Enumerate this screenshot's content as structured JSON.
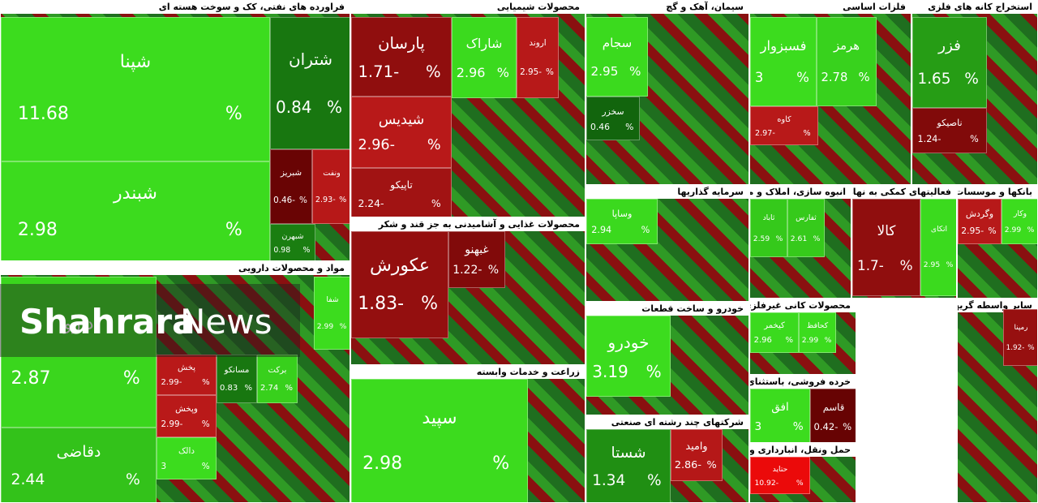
{
  "chart_data": {
    "type": "treemap",
    "percent_sign": "%",
    "watermark": {
      "bold": "Shahrara",
      "light": "News"
    },
    "groups": [
      {
        "title": "فراورده های نفتی، کک و سوخت هسته ای",
        "tiles": [
          {
            "name": "شپنا",
            "value": 11.68
          },
          {
            "name": "شبندر",
            "value": 2.98
          },
          {
            "name": "شتران",
            "value": 0.84
          },
          {
            "name": "شبریز",
            "value": -0.46,
            "value_label": "0.46-"
          },
          {
            "name": "ونفت",
            "value": -2.93,
            "value_label": "2.93-"
          },
          {
            "name": "شبهرن",
            "value": 0.98
          }
        ]
      },
      {
        "title": "مواد و محصولات دارویی",
        "tiles": [
          {
            "name": "دارو",
            "value": 2.87
          },
          {
            "name": "دقاضی",
            "value": 2.44
          },
          {
            "name": "پخش",
            "value": -2.99,
            "value_label": "2.99-"
          },
          {
            "name": "وپخش",
            "value": -2.99,
            "value_label": "2.99-"
          },
          {
            "name": "دالک",
            "value": 3
          },
          {
            "name": "مسانکو",
            "value": 0.83
          },
          {
            "name": "برکت",
            "value": 2.74
          },
          {
            "name": "شفا",
            "value": 2.99
          }
        ]
      },
      {
        "title": "محصولات شیمیایی",
        "tiles": [
          {
            "name": "پارسان",
            "value": -1.71,
            "value_label": "1.71-"
          },
          {
            "name": "شیدیس",
            "value": -2.96,
            "value_label": "2.96-"
          },
          {
            "name": "تاپیکو",
            "value": -2.24,
            "value_label": "2.24-"
          },
          {
            "name": "شاراک",
            "value": 2.96
          },
          {
            "name": "اروند",
            "value": -2.95,
            "value_label": "2.95-"
          }
        ]
      },
      {
        "title": "محصولات غذایی و آشامیدنی به جز قند و شکر",
        "tiles": [
          {
            "name": "عکورش",
            "value": -1.83,
            "value_label": "1.83-"
          },
          {
            "name": "غبهنو",
            "value": -1.22,
            "value_label": "1.22-"
          }
        ]
      },
      {
        "title": "زراعت و خدمات وابسته",
        "tiles": [
          {
            "name": "سپید",
            "value": 2.98
          }
        ]
      },
      {
        "title": "سیمان، آهک و گچ",
        "tiles": [
          {
            "name": "سجام",
            "value": 2.95
          },
          {
            "name": "سخزر",
            "value": 0.46
          }
        ]
      },
      {
        "title": "سرمایه گذاریها",
        "tiles": [
          {
            "name": "وساپا",
            "value": 2.94
          }
        ]
      },
      {
        "title": "خودرو و ساخت قطعات",
        "tiles": [
          {
            "name": "خودرو",
            "value": 3.19
          }
        ]
      },
      {
        "title": "شرکتهای چند رشته ای صنعتی",
        "tiles": [
          {
            "name": "شستا",
            "value": 1.34
          },
          {
            "name": "وامید",
            "value": -2.86,
            "value_label": "2.86-"
          }
        ]
      },
      {
        "title": "فلزات اساسی",
        "tiles": [
          {
            "name": "فسبزوار",
            "value": 3
          },
          {
            "name": "هرمز",
            "value": 2.78
          },
          {
            "name": "کاوه",
            "value": -2.97,
            "value_label": "2.97-"
          }
        ]
      },
      {
        "title": "استخراج کانه های فلزی",
        "tiles": [
          {
            "name": "فزر",
            "value": 1.65
          },
          {
            "name": "ناصیکو",
            "value": -1.24,
            "value_label": "1.24-"
          }
        ]
      },
      {
        "title": "انبوه سازی، املاک و مستغلات",
        "tiles": [
          {
            "name": "ثاباد",
            "value": 2.59
          },
          {
            "name": "ثفارس",
            "value": 2.61
          }
        ]
      },
      {
        "title": "فعالیتهای کمکی به نهادهای مالی واسط",
        "tiles": [
          {
            "name": "کالا",
            "value": -1.7,
            "value_label": "1.7-"
          },
          {
            "name": "اتکای",
            "value": 2.95
          }
        ]
      },
      {
        "title": "بانکها و موسسات اعتباری",
        "tiles": [
          {
            "name": "وگردش",
            "value": -2.95,
            "value_label": "2.95-"
          },
          {
            "name": "وکار",
            "value": 2.99
          }
        ]
      },
      {
        "title": "محصولات کانی غیرفلزی",
        "tiles": [
          {
            "name": "کیخمر",
            "value": 2.96
          },
          {
            "name": "کحافظ",
            "value": 2.99
          }
        ]
      },
      {
        "title": "خرده فروشی، باستثنای وسایل نقلیه موتوری",
        "tiles": [
          {
            "name": "افق",
            "value": 3
          },
          {
            "name": "قاسم",
            "value": -0.42,
            "value_label": "0.42-"
          }
        ]
      },
      {
        "title": "حمل ونقل، انبارداری و ارتباطات",
        "tiles": [
          {
            "name": "حتاید",
            "value": -10.92,
            "value_label": "10.92-"
          }
        ]
      },
      {
        "title": "سایر واسطه گریهای مالی",
        "tiles": [
          {
            "name": "رمپنا",
            "value": -1.92,
            "value_label": "1.92-"
          }
        ]
      }
    ]
  }
}
